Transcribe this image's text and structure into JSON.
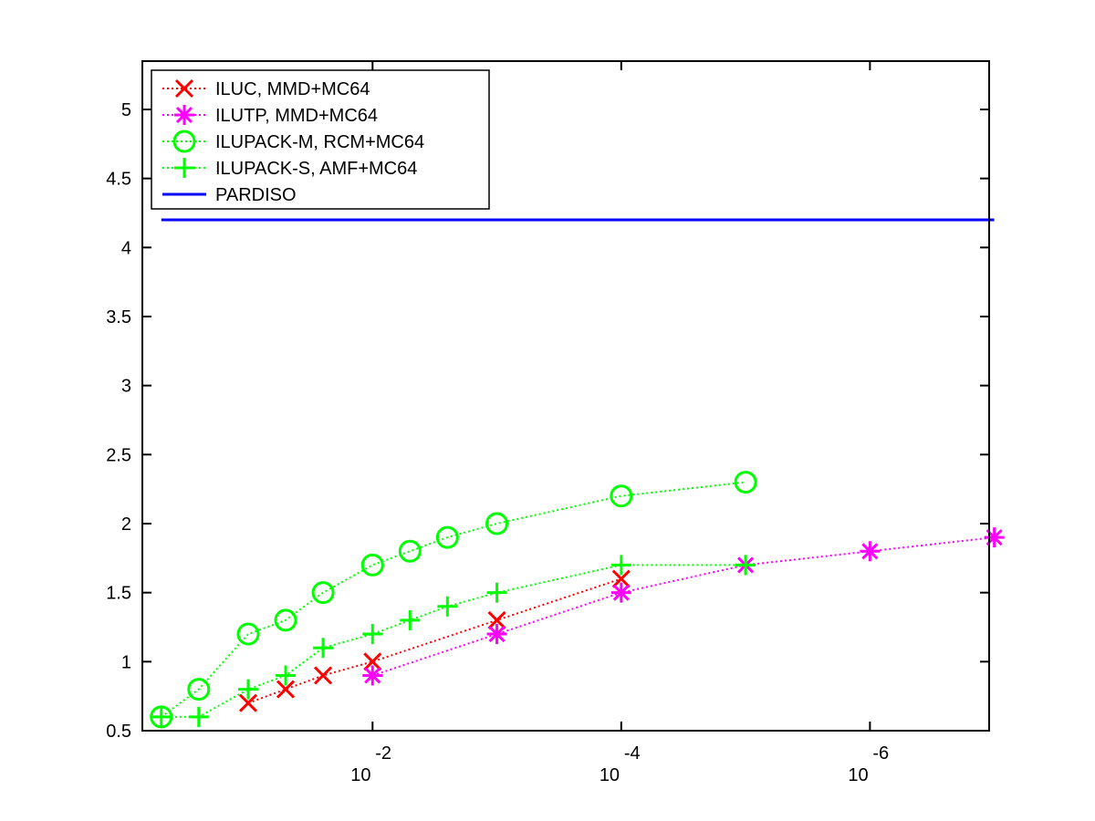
{
  "chart_data": {
    "type": "line",
    "title": "",
    "xlabel": "",
    "ylabel": "",
    "x_scale": "log-reversed",
    "xlim": [
      0.71,
      1.1e-07
    ],
    "ylim": [
      0.5,
      5.35
    ],
    "x_ticks": [
      {
        "base": "10",
        "exp": "-2",
        "value": 0.01
      },
      {
        "base": "10",
        "exp": "-4",
        "value": 0.0001
      },
      {
        "base": "10",
        "exp": "-6",
        "value": 1e-06
      }
    ],
    "y_ticks": [
      "0.5",
      "1",
      "1.5",
      "2",
      "2.5",
      "3",
      "3.5",
      "4",
      "4.5",
      "5"
    ],
    "grid": false,
    "legend_position": "top-left",
    "series": [
      {
        "name": "ILUC, MMD+MC64",
        "marker": "x",
        "line_style": "dotted",
        "color": "#ff0000",
        "x": [
          0.1,
          0.05,
          0.025,
          0.01,
          0.001,
          0.0001
        ],
        "y": [
          0.7,
          0.8,
          0.9,
          1.0,
          1.3,
          1.6
        ]
      },
      {
        "name": "ILUTP, MMD+MC64",
        "marker": "asterisk",
        "line_style": "dotted",
        "color": "#ff00ff",
        "x": [
          0.01,
          0.001,
          0.0001,
          1e-05,
          1e-06,
          1e-07
        ],
        "y": [
          0.9,
          1.2,
          1.5,
          1.7,
          1.8,
          1.9
        ]
      },
      {
        "name": "ILUPACK-M, RCM+MC64",
        "marker": "circle",
        "line_style": "dotted",
        "color": "#00ff00",
        "x": [
          0.5,
          0.25,
          0.1,
          0.05,
          0.025,
          0.01,
          0.005,
          0.0025,
          0.001,
          0.0001,
          1e-05
        ],
        "y": [
          0.6,
          0.8,
          1.2,
          1.3,
          1.5,
          1.7,
          1.8,
          1.9,
          2.0,
          2.2,
          2.3
        ]
      },
      {
        "name": "ILUPACK-S, AMF+MC64",
        "marker": "plus",
        "line_style": "dotted",
        "color": "#00ff00",
        "x": [
          0.5,
          0.25,
          0.1,
          0.05,
          0.025,
          0.01,
          0.005,
          0.0025,
          0.001,
          0.0001,
          1e-05
        ],
        "y": [
          0.6,
          0.6,
          0.8,
          0.9,
          1.1,
          1.2,
          1.3,
          1.4,
          1.5,
          1.7,
          1.7
        ]
      },
      {
        "name": "PARDISO",
        "marker": "none",
        "line_style": "solid",
        "color": "#0000ff",
        "x": [
          0.5,
          1e-07
        ],
        "y": [
          4.2,
          4.2
        ]
      }
    ]
  }
}
